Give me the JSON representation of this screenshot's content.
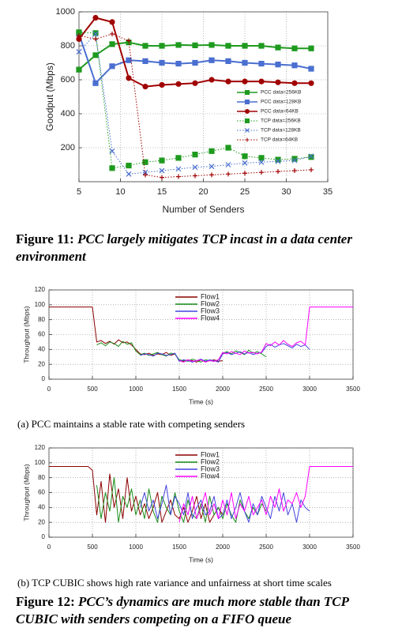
{
  "chart_data": [
    {
      "type": "line",
      "xlabel": "Number of Senders",
      "ylabel": "Goodput (Mbps)",
      "x": [
        5,
        7,
        9,
        11,
        13,
        15,
        17,
        19,
        21,
        23,
        25,
        27,
        29,
        31,
        33
      ],
      "xlim": [
        5,
        35
      ],
      "xticks": [
        5,
        10,
        15,
        20,
        25,
        30,
        35
      ],
      "ylim": [
        0,
        1000
      ],
      "yticks": [
        200,
        400,
        600,
        800,
        1000
      ],
      "grid": true,
      "legend": "right",
      "series": [
        {
          "name": "PCC data=256KB",
          "color": "#1e9a1e",
          "style": "solid",
          "marker": "square",
          "values": [
            660,
            745,
            810,
            820,
            800,
            800,
            805,
            803,
            805,
            800,
            800,
            800,
            790,
            785,
            785
          ]
        },
        {
          "name": "PCC data=128KB",
          "color": "#4a6fd0",
          "style": "solid",
          "marker": "square",
          "values": [
            870,
            580,
            680,
            715,
            710,
            700,
            695,
            700,
            715,
            710,
            700,
            695,
            690,
            685,
            665
          ]
        },
        {
          "name": "PCC data=64KB",
          "color": "#a00000",
          "style": "solid",
          "marker": "circle",
          "values": [
            840,
            965,
            940,
            610,
            560,
            570,
            575,
            580,
            600,
            590,
            590,
            590,
            585,
            580,
            580
          ]
        },
        {
          "name": "TCP data=256KB",
          "color": "#1e9a1e",
          "style": "dotted",
          "marker": "square",
          "values": [
            880,
            875,
            80,
            95,
            115,
            125,
            140,
            160,
            180,
            200,
            150,
            140,
            130,
            135,
            145
          ]
        },
        {
          "name": "TCP data=128KB",
          "color": "#4a6fd0",
          "style": "dotted",
          "marker": "x",
          "values": [
            765,
            870,
            180,
            45,
            55,
            65,
            75,
            85,
            90,
            100,
            110,
            115,
            120,
            125,
            150
          ]
        },
        {
          "name": "TCP data=64KB",
          "color": "#a00000",
          "style": "dotted",
          "marker": "plus",
          "values": [
            860,
            840,
            870,
            830,
            40,
            25,
            30,
            35,
            40,
            45,
            50,
            55,
            60,
            65,
            70
          ]
        }
      ]
    },
    {
      "type": "line",
      "xlabel": "Time (s)",
      "ylabel": "Throughput (Mbps)",
      "x": [
        0,
        50,
        100,
        150,
        200,
        250,
        300,
        350,
        400,
        450,
        500,
        550,
        600,
        650,
        700,
        750,
        800,
        850,
        900,
        950,
        1000,
        1050,
        1100,
        1150,
        1200,
        1250,
        1300,
        1350,
        1400,
        1450,
        1500,
        1550,
        1600,
        1650,
        1700,
        1750,
        1800,
        1850,
        1900,
        1950,
        2000,
        2050,
        2100,
        2150,
        2200,
        2250,
        2300,
        2350,
        2400,
        2450,
        2500,
        2550,
        2600,
        2650,
        2700,
        2750,
        2800,
        2850,
        2900,
        2950,
        3000,
        3050,
        3100,
        3150,
        3200,
        3250,
        3300,
        3350,
        3400,
        3450,
        3500
      ],
      "xlim": [
        0,
        3500
      ],
      "xticks": [
        0,
        500,
        1000,
        1500,
        2000,
        2500,
        3000,
        3500
      ],
      "ylim": [
        0,
        120
      ],
      "yticks": [
        0,
        20,
        40,
        60,
        80,
        100,
        120
      ],
      "grid": true,
      "legend": "top",
      "series": [
        {
          "name": "Flow1",
          "color": "#8b0000",
          "style": "solid",
          "values": [
            97,
            97,
            97,
            97,
            97,
            97,
            97,
            97,
            97,
            97,
            97,
            50,
            52,
            48,
            51,
            47,
            53,
            49,
            50,
            46,
            40,
            34,
            33,
            35,
            32,
            34,
            33,
            36,
            32,
            34,
            25,
            24,
            26,
            25,
            23,
            26,
            24,
            25,
            26,
            24,
            25,
            null,
            null,
            null,
            null,
            null,
            null,
            null,
            null,
            null,
            null,
            null,
            null,
            null,
            null,
            null,
            null,
            null,
            null,
            null,
            null,
            null,
            null,
            null,
            null,
            null,
            null,
            null,
            null,
            null,
            null
          ]
        },
        {
          "name": "Flow2",
          "color": "#1a8c1a",
          "style": "solid",
          "values": [
            null,
            null,
            null,
            null,
            null,
            null,
            null,
            null,
            null,
            null,
            null,
            46,
            49,
            45,
            50,
            48,
            44,
            51,
            47,
            49,
            38,
            33,
            35,
            32,
            34,
            36,
            33,
            31,
            35,
            34,
            26,
            25,
            24,
            27,
            25,
            23,
            26,
            25,
            24,
            26,
            35,
            37,
            34,
            38,
            36,
            33,
            39,
            35,
            37,
            34,
            30,
            null,
            null,
            null,
            null,
            null,
            null,
            null,
            null,
            null,
            null,
            null,
            null,
            null,
            null,
            null,
            null,
            null,
            null,
            null,
            null
          ]
        },
        {
          "name": "Flow3",
          "color": "#4444dd",
          "style": "solid",
          "values": [
            null,
            null,
            null,
            null,
            null,
            null,
            null,
            null,
            null,
            null,
            null,
            null,
            null,
            null,
            null,
            null,
            null,
            null,
            null,
            null,
            null,
            32,
            34,
            33,
            31,
            35,
            34,
            32,
            33,
            35,
            24,
            26,
            25,
            23,
            25,
            27,
            24,
            26,
            25,
            23,
            34,
            36,
            33,
            35,
            37,
            34,
            36,
            33,
            35,
            36,
            44,
            47,
            43,
            46,
            48,
            45,
            42,
            47,
            44,
            46,
            40,
            null,
            null,
            null,
            null,
            null,
            null,
            null,
            null,
            null,
            null
          ]
        },
        {
          "name": "Flow4",
          "color": "#ff00ff",
          "style": "solid",
          "values": [
            null,
            null,
            null,
            null,
            null,
            null,
            null,
            null,
            null,
            null,
            null,
            null,
            null,
            null,
            null,
            null,
            null,
            null,
            null,
            null,
            null,
            null,
            null,
            null,
            null,
            null,
            null,
            null,
            null,
            null,
            25,
            23,
            26,
            24,
            25,
            26,
            23,
            25,
            24,
            26,
            36,
            34,
            37,
            35,
            33,
            38,
            35,
            36,
            34,
            37,
            48,
            45,
            50,
            46,
            52,
            47,
            44,
            49,
            51,
            46,
            97,
            97,
            97,
            97,
            97,
            97,
            97,
            97,
            97,
            97,
            97
          ]
        }
      ]
    },
    {
      "type": "line",
      "xlabel": "Time (s)",
      "ylabel": "Throughput (Mbps)",
      "x": [
        0,
        50,
        100,
        150,
        200,
        250,
        300,
        350,
        400,
        450,
        500,
        550,
        600,
        650,
        700,
        750,
        800,
        850,
        900,
        950,
        1000,
        1050,
        1100,
        1150,
        1200,
        1250,
        1300,
        1350,
        1400,
        1450,
        1500,
        1550,
        1600,
        1650,
        1700,
        1750,
        1800,
        1850,
        1900,
        1950,
        2000,
        2050,
        2100,
        2150,
        2200,
        2250,
        2300,
        2350,
        2400,
        2450,
        2500,
        2550,
        2600,
        2650,
        2700,
        2750,
        2800,
        2850,
        2900,
        2950,
        3000,
        3050,
        3100,
        3150,
        3200,
        3250,
        3300,
        3350,
        3400,
        3450,
        3500
      ],
      "xlim": [
        0,
        3500
      ],
      "xticks": [
        0,
        500,
        1000,
        1500,
        2000,
        2500,
        3000,
        3500
      ],
      "ylim": [
        0,
        120
      ],
      "yticks": [
        0,
        20,
        40,
        60,
        80,
        100,
        120
      ],
      "grid": true,
      "legend": "top",
      "series": [
        {
          "name": "Flow1",
          "color": "#8b0000",
          "style": "solid",
          "values": [
            95,
            95,
            95,
            95,
            95,
            95,
            95,
            95,
            95,
            95,
            90,
            30,
            75,
            20,
            85,
            40,
            65,
            25,
            80,
            35,
            55,
            30,
            45,
            25,
            40,
            60,
            20,
            35,
            50,
            30,
            25,
            40,
            20,
            35,
            55,
            25,
            45,
            20,
            30,
            40,
            30,
            null,
            null,
            null,
            null,
            null,
            null,
            null,
            null,
            null,
            null,
            null,
            null,
            null,
            null,
            null,
            null,
            null,
            null,
            null,
            null,
            null,
            null,
            null,
            null,
            null,
            null,
            null,
            null,
            null,
            null
          ]
        },
        {
          "name": "Flow2",
          "color": "#1a8c1a",
          "style": "solid",
          "values": [
            null,
            null,
            null,
            null,
            null,
            null,
            null,
            null,
            null,
            null,
            null,
            70,
            25,
            60,
            35,
            80,
            20,
            55,
            40,
            65,
            30,
            50,
            25,
            65,
            35,
            20,
            55,
            40,
            30,
            60,
            35,
            20,
            50,
            30,
            25,
            45,
            20,
            55,
            30,
            40,
            25,
            45,
            30,
            20,
            50,
            35,
            25,
            40,
            30,
            45,
            35,
            null,
            null,
            null,
            null,
            null,
            null,
            null,
            null,
            null,
            null,
            null,
            null,
            null,
            null,
            null,
            null,
            null,
            null,
            null,
            null
          ]
        },
        {
          "name": "Flow3",
          "color": "#4444dd",
          "style": "solid",
          "values": [
            null,
            null,
            null,
            null,
            null,
            null,
            null,
            null,
            null,
            null,
            null,
            null,
            null,
            null,
            null,
            null,
            null,
            null,
            null,
            null,
            null,
            40,
            60,
            35,
            50,
            25,
            45,
            70,
            30,
            55,
            45,
            30,
            60,
            25,
            40,
            50,
            30,
            35,
            55,
            25,
            30,
            50,
            25,
            40,
            60,
            35,
            20,
            45,
            30,
            55,
            40,
            25,
            55,
            35,
            60,
            30,
            45,
            20,
            50,
            40,
            35,
            null,
            null,
            null,
            null,
            null,
            null,
            null,
            null,
            null,
            null
          ]
        },
        {
          "name": "Flow4",
          "color": "#ff00ff",
          "style": "solid",
          "values": [
            null,
            null,
            null,
            null,
            null,
            null,
            null,
            null,
            null,
            null,
            null,
            null,
            null,
            null,
            null,
            null,
            null,
            null,
            null,
            null,
            null,
            null,
            null,
            null,
            null,
            null,
            null,
            null,
            null,
            null,
            20,
            45,
            30,
            55,
            25,
            40,
            60,
            30,
            45,
            25,
            50,
            30,
            60,
            25,
            45,
            35,
            55,
            30,
            40,
            50,
            30,
            55,
            40,
            65,
            35,
            50,
            45,
            60,
            40,
            55,
            95,
            95,
            95,
            95,
            95,
            95,
            95,
            95,
            95,
            95,
            95
          ]
        }
      ]
    }
  ],
  "captions": {
    "figure11": {
      "label": "Figure 11:",
      "text": "PCC largely mitigates TCP incast in a data center environment"
    },
    "subfig_a": "(a) PCC maintains a stable rate with competing senders",
    "subfig_b": "(b) TCP CUBIC shows high rate variance and unfairness at short time scales",
    "figure12": {
      "label": "Figure 12:",
      "text": "PCC’s dynamics are much more stable than TCP CUBIC with senders competing on a FIFO queue"
    }
  }
}
